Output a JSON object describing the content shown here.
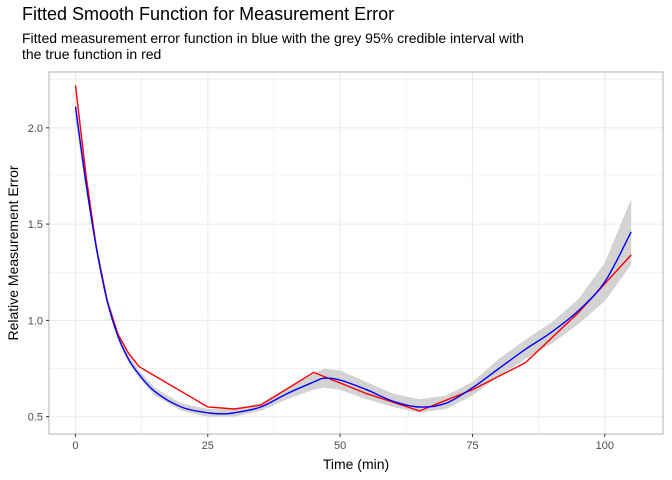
{
  "chart_data": {
    "type": "line",
    "title": "Fitted Smooth Function for Measurement Error",
    "subtitle": "Fitted measurement error function in blue with the grey 95% credible interval with the true function in red",
    "xlabel": "Time (min)",
    "ylabel": "Relative Measurement Error",
    "xlim": [
      -5,
      111
    ],
    "ylim": [
      0.41,
      2.29
    ],
    "x_ticks": [
      0,
      25,
      50,
      75,
      100
    ],
    "x_tick_labels": [
      "0",
      "25",
      "50",
      "75",
      "100"
    ],
    "y_ticks": [
      0.5,
      1.0,
      1.5,
      2.0
    ],
    "y_tick_labels": [
      "0.5",
      "1.0",
      "1.5",
      "2.0"
    ],
    "grid": true,
    "legend": "none",
    "colors": {
      "fitted": "#0000ff",
      "true": "#ff0000",
      "interval": "#d3d3d3",
      "grid": "#ebebeb",
      "panel_border": "#b3b3b3"
    },
    "series": [
      {
        "role": "credible-interval",
        "x": [
          0,
          2,
          4,
          6,
          8,
          10,
          12,
          15,
          20,
          25,
          30,
          35,
          40,
          45,
          47,
          50,
          55,
          60,
          65,
          70,
          75,
          80,
          85,
          90,
          95,
          100,
          105
        ],
        "lower": [
          2.04,
          1.67,
          1.34,
          1.08,
          0.9,
          0.78,
          0.7,
          0.61,
          0.53,
          0.5,
          0.5,
          0.53,
          0.59,
          0.64,
          0.65,
          0.64,
          0.59,
          0.55,
          0.52,
          0.54,
          0.61,
          0.71,
          0.8,
          0.88,
          0.98,
          1.1,
          1.29
        ],
        "upper": [
          2.16,
          1.75,
          1.4,
          1.13,
          0.94,
          0.82,
          0.74,
          0.65,
          0.57,
          0.54,
          0.54,
          0.57,
          0.65,
          0.72,
          0.75,
          0.74,
          0.68,
          0.62,
          0.59,
          0.61,
          0.68,
          0.8,
          0.9,
          0.99,
          1.11,
          1.3,
          1.63
        ]
      },
      {
        "role": "fitted",
        "x": [
          0,
          2,
          4,
          6,
          8,
          10,
          12,
          15,
          20,
          25,
          28,
          30,
          35,
          40,
          45,
          47,
          50,
          55,
          60,
          65,
          70,
          75,
          80,
          85,
          90,
          95,
          100,
          105
        ],
        "y": [
          2.11,
          1.71,
          1.37,
          1.1,
          0.92,
          0.8,
          0.72,
          0.63,
          0.55,
          0.52,
          0.515,
          0.52,
          0.55,
          0.62,
          0.68,
          0.7,
          0.69,
          0.64,
          0.58,
          0.55,
          0.57,
          0.65,
          0.75,
          0.85,
          0.94,
          1.05,
          1.2,
          1.46
        ]
      },
      {
        "role": "true",
        "x": [
          0,
          2,
          4,
          6,
          8,
          10,
          12,
          25,
          30,
          35,
          45,
          55,
          65,
          75,
          85,
          95,
          105
        ],
        "y": [
          2.22,
          1.75,
          1.37,
          1.1,
          0.93,
          0.83,
          0.76,
          0.55,
          0.54,
          0.56,
          0.73,
          0.62,
          0.53,
          0.64,
          0.78,
          1.04,
          1.34
        ]
      }
    ]
  }
}
